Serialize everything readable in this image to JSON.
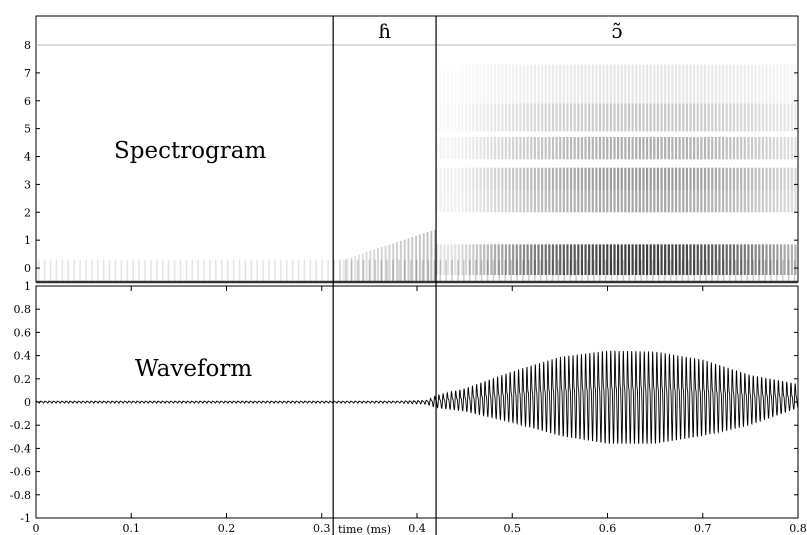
{
  "chart_data": [
    {
      "type": "heatmap",
      "title": "Spectrogram",
      "x_range": [
        0,
        0.8
      ],
      "ylim": [
        -0.5,
        8
      ],
      "y_ticks": [
        {
          "value": 0,
          "label": "0"
        },
        {
          "value": 1,
          "label": "1"
        },
        {
          "value": 2,
          "label": "2"
        },
        {
          "value": 3,
          "label": "3"
        },
        {
          "value": 4,
          "label": "4"
        },
        {
          "value": 5,
          "label": "5"
        },
        {
          "value": 6,
          "label": "6"
        },
        {
          "value": 7,
          "label": "7"
        },
        {
          "value": 8,
          "label": "8"
        }
      ],
      "segments": [
        {
          "label": "ɦ",
          "start": 0.312,
          "end": 0.42
        },
        {
          "label": "ɔ̃",
          "start": 0.42,
          "end": 0.8
        }
      ],
      "boundaries": [
        0.312,
        0.42
      ],
      "grid": false
    },
    {
      "type": "line",
      "title": "Waveform",
      "xlabel": "time (ms)",
      "ylabel": "",
      "xlim": [
        0,
        0.8
      ],
      "ylim": [
        -1,
        1
      ],
      "x_ticks": [
        {
          "value": 0,
          "label": "0"
        },
        {
          "value": 0.1,
          "label": "0.1"
        },
        {
          "value": 0.2,
          "label": "0.2"
        },
        {
          "value": 0.3,
          "label": "0.3"
        },
        {
          "value": 0.4,
          "label": "0.4"
        },
        {
          "value": 0.5,
          "label": "0.5"
        },
        {
          "value": 0.6,
          "label": "0.6"
        },
        {
          "value": 0.7,
          "label": "0.7"
        },
        {
          "value": 0.8,
          "label": "0.8"
        }
      ],
      "y_ticks": [
        {
          "value": 1,
          "label": "1"
        },
        {
          "value": 0.8,
          "label": "0.8"
        },
        {
          "value": 0.6,
          "label": "0.6"
        },
        {
          "value": 0.4,
          "label": "0.4"
        },
        {
          "value": 0.2,
          "label": "0.2"
        },
        {
          "value": 0,
          "label": "0"
        },
        {
          "value": -0.2,
          "label": "-0.2"
        },
        {
          "value": -0.4,
          "label": "-0.4"
        },
        {
          "value": -0.6,
          "label": "-0.6"
        },
        {
          "value": -0.8,
          "label": "-0.8"
        },
        {
          "value": -1,
          "label": "-1"
        }
      ],
      "envelope": {
        "x": [
          0,
          0.38,
          0.41,
          0.42,
          0.45,
          0.5,
          0.55,
          0.6,
          0.65,
          0.7,
          0.75,
          0.8
        ],
        "upper": [
          0.01,
          0.01,
          0.02,
          0.07,
          0.15,
          0.34,
          0.5,
          0.57,
          0.56,
          0.47,
          0.3,
          0.2
        ],
        "lower": [
          -0.01,
          -0.01,
          -0.02,
          -0.05,
          -0.08,
          -0.18,
          -0.3,
          -0.37,
          -0.37,
          -0.3,
          -0.2,
          -0.05
        ]
      },
      "boundaries": [
        0.312,
        0.42
      ],
      "grid": false
    }
  ]
}
